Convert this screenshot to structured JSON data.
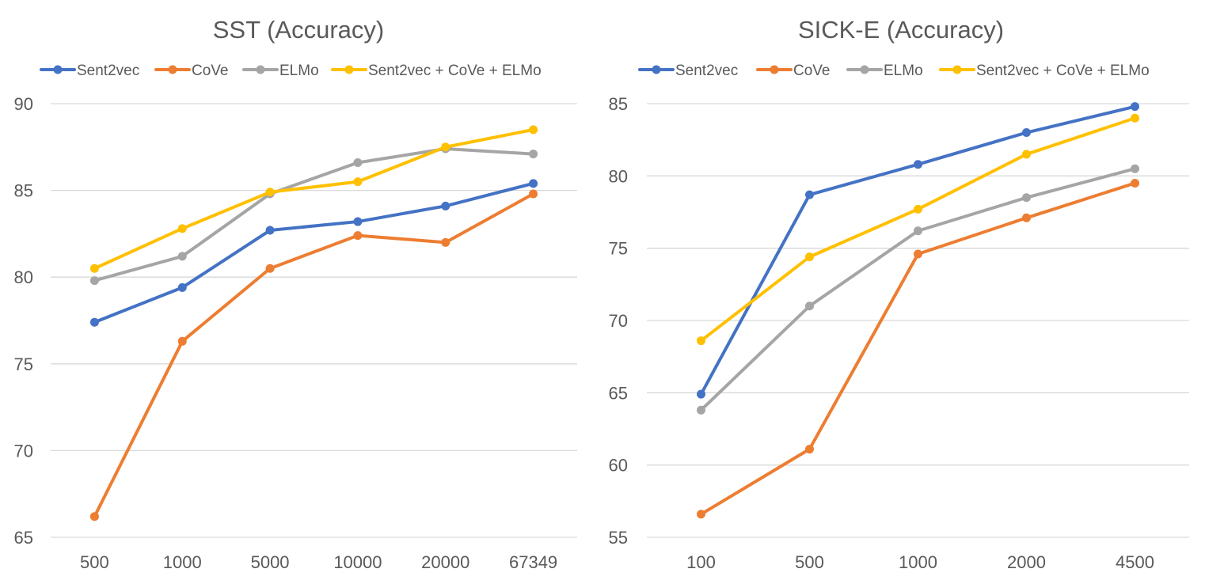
{
  "chart_data": [
    {
      "type": "line",
      "title": "SST (Accuracy)",
      "xlabel": "",
      "ylabel": "",
      "categories": [
        "500",
        "1000",
        "5000",
        "10000",
        "20000",
        "67349"
      ],
      "ylim": [
        65,
        90
      ],
      "yticks": [
        65,
        70,
        75,
        80,
        85,
        90
      ],
      "grid": true,
      "legend_position": "top",
      "series": [
        {
          "name": "Sent2vec",
          "color": "#4472c4",
          "values": [
            77.4,
            79.4,
            82.7,
            83.2,
            84.1,
            85.4
          ]
        },
        {
          "name": "CoVe",
          "color": "#ed7d31",
          "values": [
            66.2,
            76.3,
            80.5,
            82.4,
            82.0,
            84.8
          ]
        },
        {
          "name": "ELMo",
          "color": "#a5a5a5",
          "values": [
            79.8,
            81.2,
            84.8,
            86.6,
            87.4,
            87.1
          ]
        },
        {
          "name": "Sent2vec + CoVe + ELMo",
          "color": "#ffc000",
          "values": [
            80.5,
            82.8,
            84.9,
            85.5,
            87.5,
            88.5
          ]
        }
      ]
    },
    {
      "type": "line",
      "title": "SICK-E (Accuracy)",
      "xlabel": "",
      "ylabel": "",
      "categories": [
        "100",
        "500",
        "1000",
        "2000",
        "4500"
      ],
      "ylim": [
        55,
        85
      ],
      "yticks": [
        55,
        60,
        65,
        70,
        75,
        80,
        85
      ],
      "grid": true,
      "legend_position": "top",
      "series": [
        {
          "name": "Sent2vec",
          "color": "#4472c4",
          "values": [
            64.9,
            78.7,
            80.8,
            83.0,
            84.8
          ]
        },
        {
          "name": "CoVe",
          "color": "#ed7d31",
          "values": [
            56.6,
            61.1,
            74.6,
            77.1,
            79.5
          ]
        },
        {
          "name": "ELMo",
          "color": "#a5a5a5",
          "values": [
            63.8,
            71.0,
            76.2,
            78.5,
            80.5
          ]
        },
        {
          "name": "Sent2vec + CoVe + ELMo",
          "color": "#ffc000",
          "values": [
            68.6,
            74.4,
            77.7,
            81.5,
            84.0
          ]
        }
      ]
    }
  ]
}
